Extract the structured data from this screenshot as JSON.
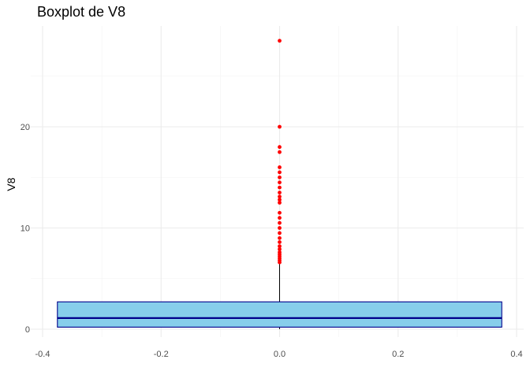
{
  "chart_data": {
    "type": "boxplot",
    "title": "Boxplot de V8",
    "xlabel": "",
    "ylabel": "V8",
    "xlim": [
      -0.4,
      0.4
    ],
    "ylim": [
      -0.5,
      30
    ],
    "x_ticks": [
      -0.4,
      -0.2,
      0.0,
      0.2,
      0.4
    ],
    "x_tick_labels": [
      "-0.4",
      "-0.2",
      "0.0",
      "0.2",
      "0.4"
    ],
    "y_ticks": [
      0,
      10,
      20
    ],
    "y_tick_labels": [
      "0",
      "10",
      "20"
    ],
    "grid": true,
    "box": {
      "x": 0.0,
      "width": 0.75,
      "q1": 0.2,
      "median": 1.1,
      "q3": 2.7,
      "whisker_low": 0.0,
      "whisker_high": 6.5
    },
    "outliers": [
      6.6,
      6.8,
      7.0,
      7.2,
      7.4,
      7.6,
      7.9,
      8.2,
      8.6,
      9.0,
      9.5,
      10.0,
      10.5,
      11.0,
      11.5,
      12.5,
      12.8,
      13.1,
      13.5,
      14.0,
      14.5,
      15.0,
      15.5,
      16.0,
      17.5,
      18.0,
      20.0,
      28.5
    ],
    "colors": {
      "box_fill": "#87ceeb",
      "box_border": "#00008b",
      "median_line": "#00008b",
      "whisker": "#000000",
      "outlier": "#ff0000",
      "grid_major": "#ebebeb",
      "grid_minor": "#f3f3f3"
    }
  }
}
